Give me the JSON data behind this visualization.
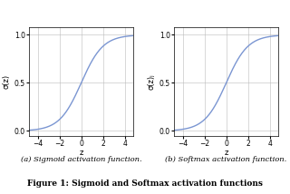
{
  "title": "Figure 1: Sigmoid and Softmax activation functions",
  "subplot_a_caption": "(a) Sigmoid activation function.",
  "subplot_b_caption": "(b) Softmax activation function.",
  "xlabel": "z",
  "ylabel_a": "σ(z)",
  "ylabel_b": "σ(z)ⱼ",
  "x_range": [
    -5,
    5
  ],
  "xlim": [
    -4.8,
    4.8
  ],
  "ylim": [
    -0.05,
    1.08
  ],
  "yticks": [
    0,
    0.5,
    1
  ],
  "xticks": [
    -4,
    -2,
    0,
    2,
    4
  ],
  "line_color": "#7b96d2",
  "line_width": 1.0,
  "background_color": "#ffffff",
  "grid_color": "#bbbbbb",
  "title_fontsize": 6.5,
  "caption_fontsize": 6.0,
  "axis_label_fontsize": 6.0,
  "tick_fontsize": 5.5
}
